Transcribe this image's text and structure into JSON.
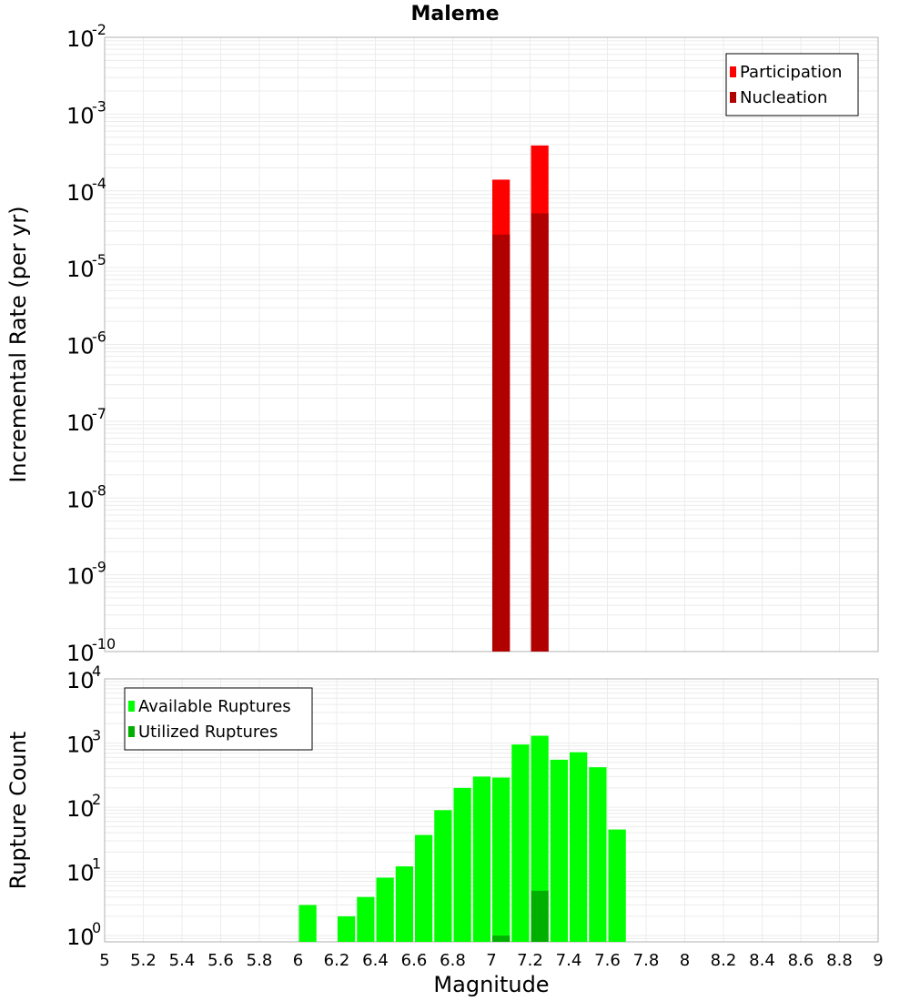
{
  "chart_data": [
    {
      "type": "bar",
      "title": "Maleme",
      "ylabel": "Incremental Rate (per yr)",
      "xlabel": "",
      "yscale": "log",
      "ylim": [
        1e-10,
        0.01
      ],
      "xlim": [
        5,
        9
      ],
      "grid": true,
      "legend_position": "top-right",
      "y_ticks": [
        {
          "base": "10",
          "exp": "-10",
          "value": 1e-10
        },
        {
          "base": "10",
          "exp": "-9",
          "value": 1e-09
        },
        {
          "base": "10",
          "exp": "-8",
          "value": 1e-08
        },
        {
          "base": "10",
          "exp": "-7",
          "value": 1e-07
        },
        {
          "base": "10",
          "exp": "-6",
          "value": 1e-06
        },
        {
          "base": "10",
          "exp": "-5",
          "value": 1e-05
        },
        {
          "base": "10",
          "exp": "-4",
          "value": 0.0001
        },
        {
          "base": "10",
          "exp": "-3",
          "value": 0.001
        },
        {
          "base": "10",
          "exp": "-2",
          "value": 0.01
        }
      ],
      "bar_width": 0.1,
      "series": [
        {
          "name": "Participation",
          "color": "#ff0000",
          "x": [
            7.05,
            7.25
          ],
          "values": [
            0.00014,
            0.00039
          ]
        },
        {
          "name": "Nucleation",
          "color": "#b00000",
          "x": [
            7.05,
            7.25
          ],
          "values": [
            2.7e-05,
            5.1e-05
          ]
        }
      ]
    },
    {
      "type": "bar",
      "title": "",
      "ylabel": "Rupture Count",
      "xlabel": "Magnitude",
      "yscale": "log",
      "ylim": [
        0.8,
        10000
      ],
      "xlim": [
        5,
        9
      ],
      "grid": true,
      "legend_position": "top-left",
      "y_ticks": [
        {
          "base": "10",
          "exp": "0",
          "value": 1
        },
        {
          "base": "10",
          "exp": "1",
          "value": 10
        },
        {
          "base": "10",
          "exp": "2",
          "value": 100
        },
        {
          "base": "10",
          "exp": "3",
          "value": 1000
        },
        {
          "base": "10",
          "exp": "4",
          "value": 10000
        }
      ],
      "x_ticks": [
        "5",
        "5.2",
        "5.4",
        "5.6",
        "5.8",
        "6",
        "6.2",
        "6.4",
        "6.6",
        "6.8",
        "7",
        "7.2",
        "7.4",
        "7.6",
        "7.8",
        "8",
        "8.2",
        "8.4",
        "8.6",
        "8.8",
        "9"
      ],
      "bar_width": 0.1,
      "series": [
        {
          "name": "Available Ruptures",
          "color": "#00ff00",
          "x": [
            6.05,
            6.25,
            6.35,
            6.45,
            6.55,
            6.65,
            6.75,
            6.85,
            6.95,
            7.05,
            7.15,
            7.25,
            7.35,
            7.45,
            7.55,
            7.65
          ],
          "values": [
            3,
            2,
            4,
            8,
            12,
            37,
            90,
            200,
            300,
            290,
            950,
            1300,
            550,
            720,
            420,
            45
          ]
        },
        {
          "name": "Utilized Ruptures",
          "color": "#00b000",
          "x": [
            7.05,
            7.25
          ],
          "values": [
            1,
            5
          ]
        }
      ]
    }
  ]
}
